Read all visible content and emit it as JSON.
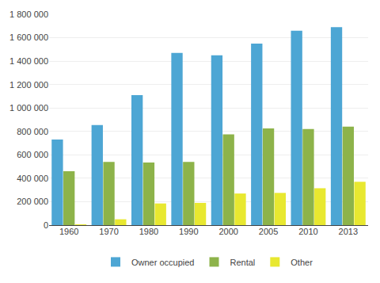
{
  "chart_data": {
    "type": "bar",
    "categories": [
      "1960",
      "1970",
      "1980",
      "1990",
      "2000",
      "2005",
      "2010",
      "2013"
    ],
    "series": [
      {
        "name": "Owner occupied",
        "color": "#4DA6D4",
        "values": [
          730000,
          855000,
          1110000,
          1470000,
          1450000,
          1550000,
          1660000,
          1690000
        ]
      },
      {
        "name": "Rental",
        "color": "#8DB34A",
        "values": [
          460000,
          540000,
          535000,
          540000,
          775000,
          825000,
          820000,
          840000
        ]
      },
      {
        "name": "Other",
        "color": "#E8E830",
        "values": [
          1000,
          50000,
          185000,
          190000,
          270000,
          275000,
          315000,
          370000
        ]
      }
    ],
    "ylim": [
      0,
      1800000
    ],
    "yticks": [
      0,
      {
        "value": 200000,
        "label": "200 000"
      },
      {
        "value": 400000,
        "label": "400 000"
      },
      {
        "value": 600000,
        "label": "600 000"
      },
      {
        "value": 800000,
        "label": "800 000"
      },
      {
        "value": 1000000,
        "label": "1 000 000"
      },
      {
        "value": 1200000,
        "label": "1 200 000"
      },
      {
        "value": 1400000,
        "label": "1 400 000"
      },
      {
        "value": 1600000,
        "label": "1 600 000"
      },
      {
        "value": 1800000,
        "label": "1 800 000"
      }
    ],
    "grid": true,
    "legend": "bottom"
  }
}
